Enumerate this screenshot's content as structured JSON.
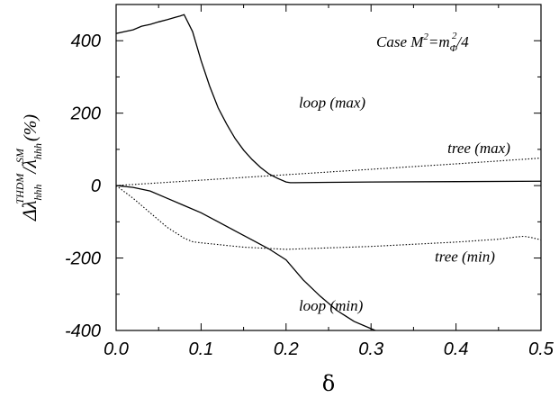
{
  "chart_data": {
    "type": "line",
    "xlabel": "δ",
    "xlim": [
      0.0,
      0.5
    ],
    "ylim": [
      -400,
      500
    ],
    "x_ticks": [
      "0.0",
      "0.1",
      "0.2",
      "0.3",
      "0.4",
      "0.5"
    ],
    "x_tick_values": [
      0.0,
      0.1,
      0.2,
      0.3,
      0.4,
      0.5
    ],
    "y_ticks": [
      "-400",
      "-200",
      "0",
      "200",
      "400"
    ],
    "y_tick_values": [
      -400,
      -200,
      0,
      200,
      400
    ],
    "ylabel": {
      "main": "Δλ",
      "sub1": "hhh",
      "sup1": "THDM",
      "slash": "/",
      "lambda2": "λ",
      "sub2": "hhh",
      "sup2": "SM",
      "unit": "(%)"
    },
    "case_label": {
      "prefix": "Case M",
      "sup1": "2",
      "eq": "=m",
      "sub": "Φ",
      "sup2": "2",
      "suffix": "/4"
    },
    "series": [
      {
        "name": "loop (max)",
        "style": "solid",
        "x": [
          0.0,
          0.01,
          0.02,
          0.03,
          0.04,
          0.05,
          0.06,
          0.07,
          0.075,
          0.08,
          0.09,
          0.1,
          0.11,
          0.12,
          0.13,
          0.14,
          0.15,
          0.16,
          0.17,
          0.18,
          0.19,
          0.2,
          0.205,
          0.21,
          0.25,
          0.3,
          0.4,
          0.5
        ],
        "y": [
          420,
          425,
          430,
          440,
          445,
          452,
          458,
          465,
          468,
          472,
          425,
          345,
          275,
          215,
          170,
          130,
          98,
          72,
          50,
          32,
          20,
          10,
          8,
          8,
          9,
          10,
          11,
          12
        ]
      },
      {
        "name": "tree (max)",
        "style": "dotted",
        "x": [
          0.0,
          0.1,
          0.2,
          0.3,
          0.4,
          0.5
        ],
        "y": [
          0,
          15,
          30,
          45,
          60,
          76
        ]
      },
      {
        "name": "tree (min)",
        "style": "dotted",
        "x": [
          0.0,
          0.02,
          0.04,
          0.06,
          0.08,
          0.09,
          0.1,
          0.15,
          0.2,
          0.25,
          0.3,
          0.35,
          0.4,
          0.45,
          0.47,
          0.48,
          0.49,
          0.5
        ],
        "y": [
          0,
          -35,
          -75,
          -115,
          -145,
          -155,
          -158,
          -170,
          -176,
          -172,
          -168,
          -162,
          -156,
          -148,
          -142,
          -140,
          -144,
          -150
        ]
      },
      {
        "name": "loop (min)",
        "style": "solid",
        "x": [
          0.0,
          0.02,
          0.04,
          0.06,
          0.08,
          0.1,
          0.12,
          0.14,
          0.16,
          0.18,
          0.2,
          0.22,
          0.24,
          0.26,
          0.28,
          0.3,
          0.31
        ],
        "y": [
          0,
          -5,
          -15,
          -35,
          -55,
          -75,
          -100,
          -125,
          -150,
          -175,
          -205,
          -260,
          -305,
          -345,
          -375,
          -395,
          -405
        ]
      }
    ],
    "annotations": [
      {
        "text": "loop (max)",
        "x": 0.215,
        "y": 215
      },
      {
        "text": "tree (max)",
        "x": 0.39,
        "y": 90
      },
      {
        "text": "tree (min)",
        "x": 0.375,
        "y": -210
      },
      {
        "text": "loop (min)",
        "x": 0.215,
        "y": -345
      }
    ]
  }
}
